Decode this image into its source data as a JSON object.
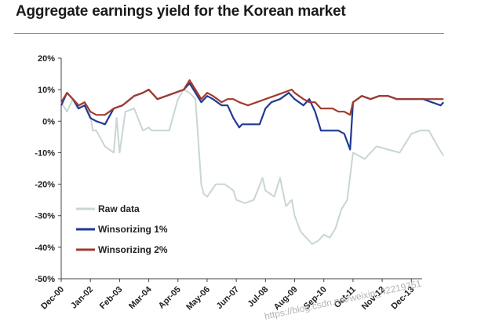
{
  "title": "Aggregate earnings yield for the Korean market",
  "watermark": "https://blog.csdn.net/weixin_42219751",
  "chart_data": {
    "type": "line",
    "title": "Aggregate earnings yield for the Korean market",
    "xlabel": "",
    "ylabel": "",
    "ylim": [
      -50,
      20
    ],
    "yticks": [
      20,
      10,
      0,
      -10,
      -20,
      -30,
      -40,
      -50
    ],
    "ytick_labels": [
      "20%",
      "10%",
      "0%",
      "-10%",
      "-20%",
      "-30%",
      "-40%",
      "-50%"
    ],
    "x_tick_labels": [
      "Dec-00",
      "Jan-02",
      "Feb-03",
      "Mar-04",
      "Apr-05",
      "May-06",
      "Jun-07",
      "Jul-08",
      "Aug-09",
      "Sep-10",
      "Oct-11",
      "Nov-12",
      "Dec-13"
    ],
    "grid": false,
    "legend_position": "lower-left",
    "series": [
      {
        "name": "Raw data",
        "color": "#c8d6d4",
        "x": [
          0,
          0.2,
          0.4,
          0.55,
          0.8,
          1.0,
          1.08,
          1.2,
          1.5,
          1.8,
          1.9,
          2.0,
          2.2,
          2.5,
          2.8,
          3.0,
          3.1,
          3.4,
          3.7,
          4.0,
          4.2,
          4.4,
          4.6,
          4.8,
          4.88,
          5.0,
          5.3,
          5.6,
          5.9,
          6.0,
          6.3,
          6.6,
          6.9,
          7.0,
          7.3,
          7.5,
          7.7,
          7.9,
          8.0,
          8.2,
          8.4,
          8.6,
          8.8,
          9.0,
          9.2,
          9.4,
          9.6,
          9.8,
          10.0,
          10.4,
          10.8,
          11.2,
          11.6,
          12.0,
          12.3,
          12.6,
          12.9,
          13.1
        ],
        "values": [
          6,
          3,
          7,
          4,
          6,
          2,
          -3,
          -3,
          -8,
          -10,
          1,
          -10,
          3,
          4,
          -3,
          -2,
          -3,
          -3,
          -3,
          7,
          10,
          9,
          7,
          -20,
          -23,
          -24,
          -20,
          -20,
          -22,
          -25,
          -26,
          -25,
          -18,
          -22,
          -24,
          -18,
          -27,
          -25,
          -30,
          -35,
          -37,
          -39,
          -38,
          -36,
          -37,
          -34,
          -28,
          -25,
          -10,
          -12,
          -8,
          -9,
          -10,
          -4,
          -3,
          -3,
          -8,
          -11
        ]
      },
      {
        "name": "Winsorizing 1%",
        "color": "#1f3a93",
        "x": [
          0,
          0.2,
          0.4,
          0.6,
          0.8,
          1.0,
          1.2,
          1.5,
          1.8,
          2.1,
          2.5,
          2.8,
          3.0,
          3.3,
          3.6,
          3.9,
          4.2,
          4.4,
          4.6,
          4.8,
          5.0,
          5.2,
          5.5,
          5.7,
          5.9,
          6.1,
          6.2,
          6.5,
          6.8,
          7.0,
          7.2,
          7.5,
          7.8,
          8.0,
          8.3,
          8.5,
          8.7,
          8.9,
          9.1,
          9.3,
          9.5,
          9.7,
          9.9,
          10.0,
          10.3,
          10.6,
          10.9,
          11.2,
          11.5,
          11.8,
          12.1,
          12.4,
          12.7,
          13.0,
          13.1
        ],
        "values": [
          5,
          9,
          7,
          4,
          5,
          1,
          0,
          -1,
          4,
          5,
          8,
          9,
          10,
          7,
          8,
          9,
          10,
          12,
          9,
          6,
          8,
          7,
          5,
          5,
          1,
          -2,
          -1,
          -1,
          -1,
          4,
          6,
          7,
          9,
          7,
          5,
          7,
          3,
          -3,
          -3,
          -3,
          -3,
          -4,
          -9,
          6,
          8,
          7,
          8,
          8,
          7,
          7,
          7,
          7,
          6,
          5,
          6
        ]
      },
      {
        "name": "Winsorizing 2%",
        "color": "#a33a2c",
        "x": [
          0,
          0.2,
          0.4,
          0.6,
          0.8,
          1.0,
          1.2,
          1.5,
          1.8,
          2.1,
          2.5,
          2.8,
          3.0,
          3.3,
          3.6,
          3.9,
          4.2,
          4.4,
          4.6,
          4.8,
          5.0,
          5.2,
          5.5,
          5.7,
          5.9,
          6.1,
          6.4,
          6.7,
          7.0,
          7.3,
          7.6,
          7.9,
          8.0,
          8.3,
          8.5,
          8.7,
          8.9,
          9.1,
          9.3,
          9.5,
          9.7,
          9.9,
          10.0,
          10.3,
          10.6,
          10.9,
          11.2,
          11.5,
          11.8,
          12.1,
          12.4,
          12.7,
          13.0,
          13.1
        ],
        "values": [
          6,
          9,
          7,
          5,
          6,
          3,
          2,
          2,
          4,
          5,
          8,
          9,
          10,
          7,
          8,
          9,
          10,
          13,
          10,
          7,
          9,
          8,
          6,
          7,
          7,
          6,
          5,
          6,
          7,
          8,
          9,
          10,
          9,
          7,
          6,
          6,
          4,
          4,
          4,
          3,
          3,
          2,
          6,
          8,
          7,
          8,
          8,
          7,
          7,
          7,
          7,
          7,
          7,
          7
        ]
      }
    ]
  }
}
